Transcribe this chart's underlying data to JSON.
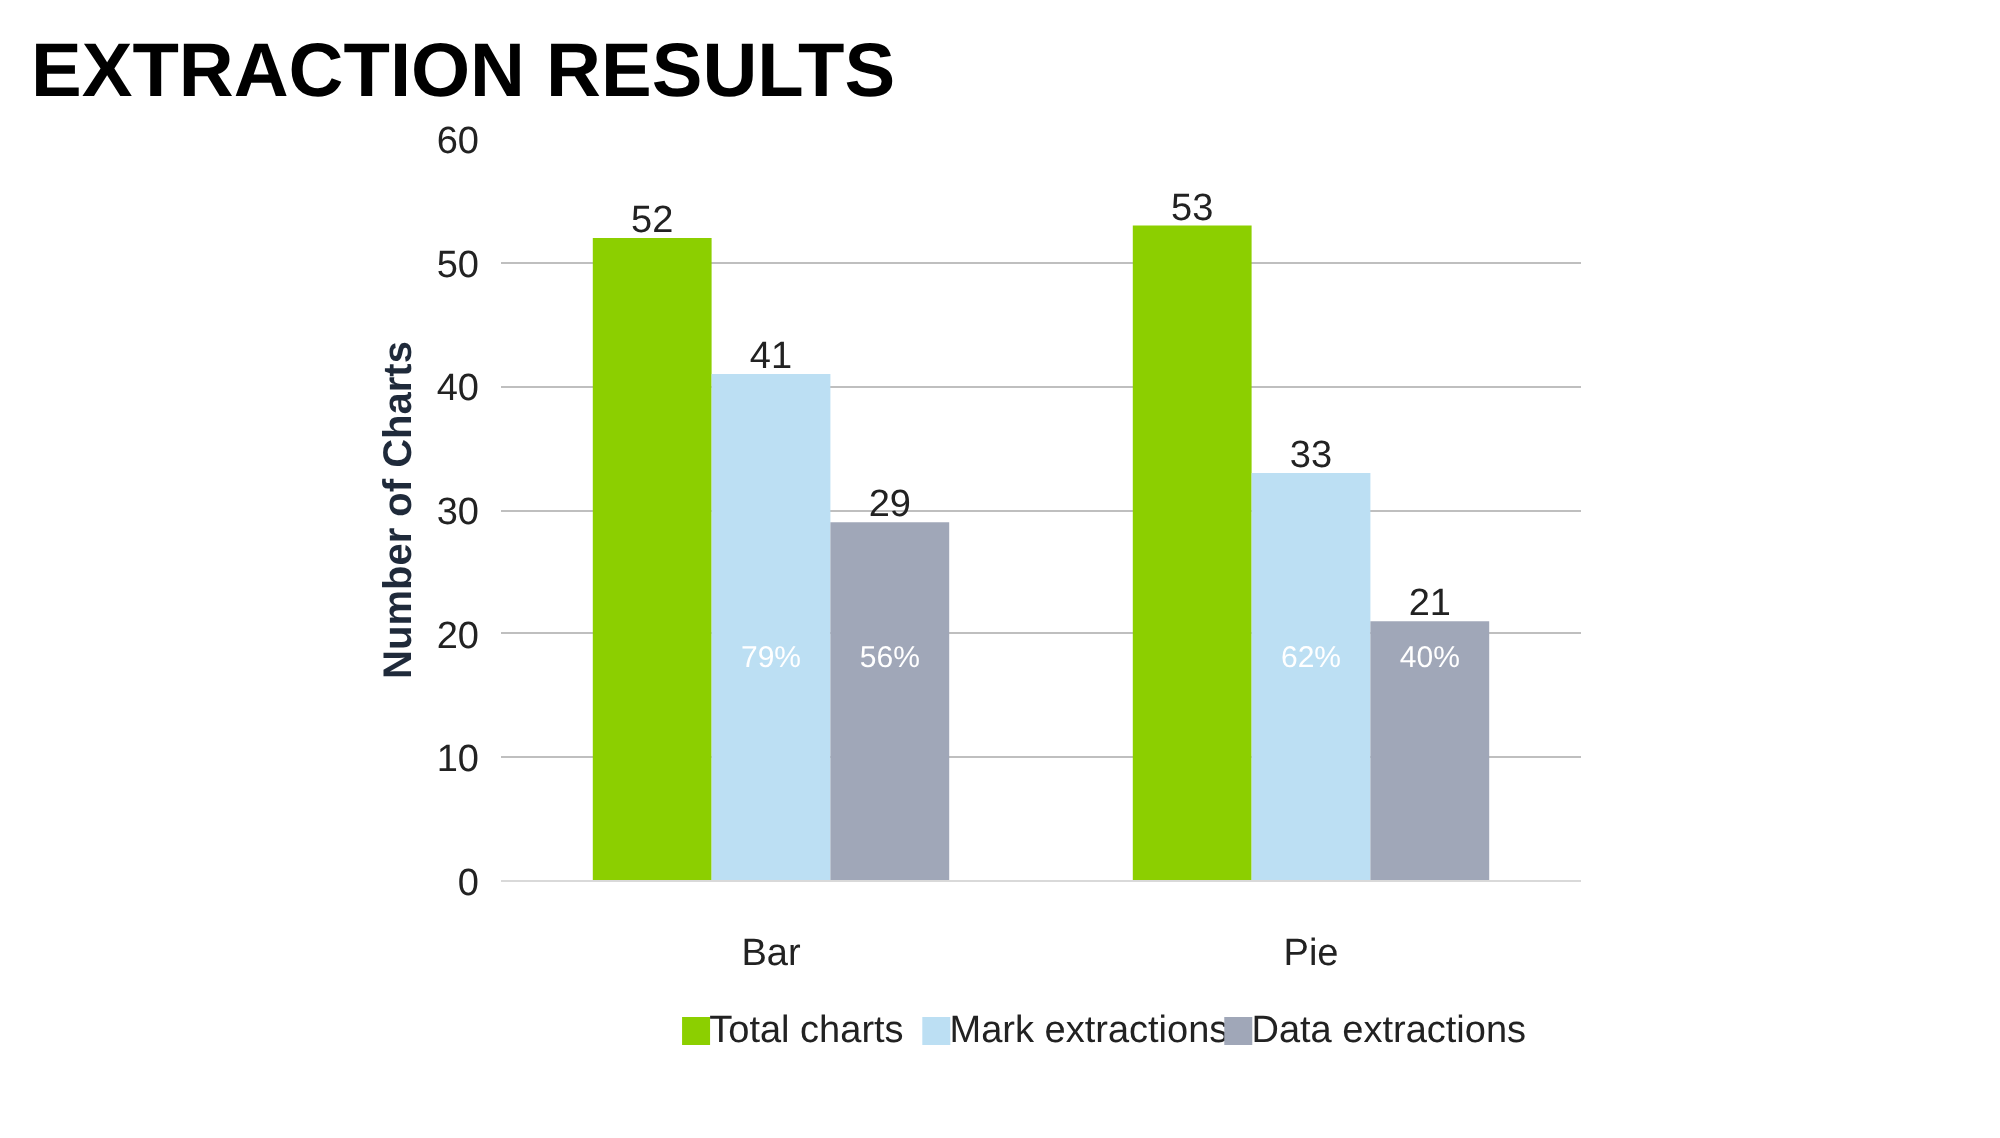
{
  "chart_data": {
    "type": "bar",
    "title": "EXTRACTION RESULTS",
    "ylabel": "Number of Charts",
    "categories": [
      "Bar",
      "Pie"
    ],
    "series": [
      {
        "name": "Total charts",
        "color": "#8ccf00",
        "values": [
          52,
          53
        ]
      },
      {
        "name": "Mark extractions",
        "color": "#bcdff3",
        "values": [
          41,
          33
        ]
      },
      {
        "name": "Data extractions",
        "color": "#a0a7b8",
        "values": [
          29,
          21
        ]
      }
    ],
    "annotations": [
      "79%",
      "56%",
      "62%",
      "40%"
    ],
    "ylim": [
      0,
      60
    ],
    "yticks": [
      0,
      10,
      20,
      30,
      40,
      50,
      60
    ],
    "grid": "y",
    "legend": "bottom",
    "data_labels": true
  }
}
